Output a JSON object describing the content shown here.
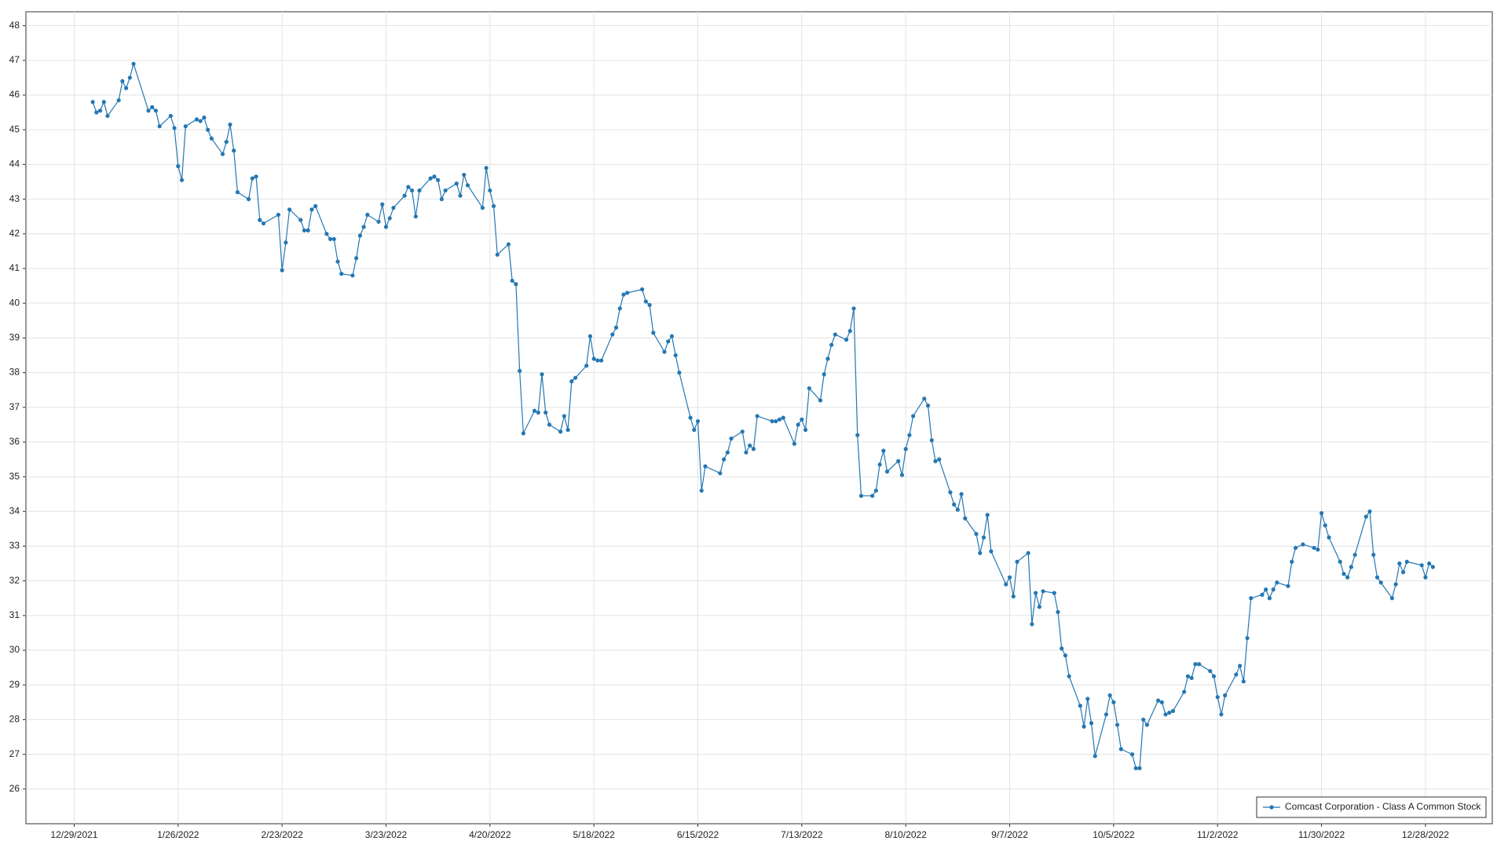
{
  "chart_data": {
    "type": "line",
    "x": [
      "1/3/2022",
      "1/4/2022",
      "1/5/2022",
      "1/6/2022",
      "1/7/2022",
      "1/10/2022",
      "1/11/2022",
      "1/12/2022",
      "1/13/2022",
      "1/14/2022",
      "1/18/2022",
      "1/19/2022",
      "1/20/2022",
      "1/21/2022",
      "1/24/2022",
      "1/25/2022",
      "1/26/2022",
      "1/27/2022",
      "1/28/2022",
      "1/31/2022",
      "2/1/2022",
      "2/2/2022",
      "2/3/2022",
      "2/4/2022",
      "2/7/2022",
      "2/8/2022",
      "2/9/2022",
      "2/10/2022",
      "2/11/2022",
      "2/14/2022",
      "2/15/2022",
      "2/16/2022",
      "2/17/2022",
      "2/18/2022",
      "2/22/2022",
      "2/23/2022",
      "2/24/2022",
      "2/25/2022",
      "2/28/2022",
      "3/1/2022",
      "3/2/2022",
      "3/3/2022",
      "3/4/2022",
      "3/7/2022",
      "3/8/2022",
      "3/9/2022",
      "3/10/2022",
      "3/11/2022",
      "3/14/2022",
      "3/15/2022",
      "3/16/2022",
      "3/17/2022",
      "3/18/2022",
      "3/21/2022",
      "3/22/2022",
      "3/23/2022",
      "3/24/2022",
      "3/25/2022",
      "3/28/2022",
      "3/29/2022",
      "3/30/2022",
      "3/31/2022",
      "4/1/2022",
      "4/4/2022",
      "4/5/2022",
      "4/6/2022",
      "4/7/2022",
      "4/8/2022",
      "4/11/2022",
      "4/12/2022",
      "4/13/2022",
      "4/14/2022",
      "4/18/2022",
      "4/19/2022",
      "4/20/2022",
      "4/21/2022",
      "4/22/2022",
      "4/25/2022",
      "4/26/2022",
      "4/27/2022",
      "4/28/2022",
      "4/29/2022",
      "5/2/2022",
      "5/3/2022",
      "5/4/2022",
      "5/5/2022",
      "5/6/2022",
      "5/9/2022",
      "5/10/2022",
      "5/11/2022",
      "5/12/2022",
      "5/13/2022",
      "5/16/2022",
      "5/17/2022",
      "5/18/2022",
      "5/19/2022",
      "5/20/2022",
      "5/23/2022",
      "5/24/2022",
      "5/25/2022",
      "5/26/2022",
      "5/27/2022",
      "5/31/2022",
      "6/1/2022",
      "6/2/2022",
      "6/3/2022",
      "6/6/2022",
      "6/7/2022",
      "6/8/2022",
      "6/9/2022",
      "6/10/2022",
      "6/13/2022",
      "6/14/2022",
      "6/15/2022",
      "6/16/2022",
      "6/17/2022",
      "6/21/2022",
      "6/22/2022",
      "6/23/2022",
      "6/24/2022",
      "6/27/2022",
      "6/28/2022",
      "6/29/2022",
      "6/30/2022",
      "7/1/2022",
      "7/5/2022",
      "7/6/2022",
      "7/7/2022",
      "7/8/2022",
      "7/11/2022",
      "7/12/2022",
      "7/13/2022",
      "7/14/2022",
      "7/15/2022",
      "7/18/2022",
      "7/19/2022",
      "7/20/2022",
      "7/21/2022",
      "7/22/2022",
      "7/25/2022",
      "7/26/2022",
      "7/27/2022",
      "7/28/2022",
      "7/29/2022",
      "8/1/2022",
      "8/2/2022",
      "8/3/2022",
      "8/4/2022",
      "8/5/2022",
      "8/8/2022",
      "8/9/2022",
      "8/10/2022",
      "8/11/2022",
      "8/12/2022",
      "8/15/2022",
      "8/16/2022",
      "8/17/2022",
      "8/18/2022",
      "8/19/2022",
      "8/22/2022",
      "8/23/2022",
      "8/24/2022",
      "8/25/2022",
      "8/26/2022",
      "8/29/2022",
      "8/30/2022",
      "8/31/2022",
      "9/1/2022",
      "9/2/2022",
      "9/6/2022",
      "9/7/2022",
      "9/8/2022",
      "9/9/2022",
      "9/12/2022",
      "9/13/2022",
      "9/14/2022",
      "9/15/2022",
      "9/16/2022",
      "9/19/2022",
      "9/20/2022",
      "9/21/2022",
      "9/22/2022",
      "9/23/2022",
      "9/26/2022",
      "9/27/2022",
      "9/28/2022",
      "9/29/2022",
      "9/30/2022",
      "10/3/2022",
      "10/4/2022",
      "10/5/2022",
      "10/6/2022",
      "10/7/2022",
      "10/10/2022",
      "10/11/2022",
      "10/12/2022",
      "10/13/2022",
      "10/14/2022",
      "10/17/2022",
      "10/18/2022",
      "10/19/2022",
      "10/20/2022",
      "10/21/2022",
      "10/24/2022",
      "10/25/2022",
      "10/26/2022",
      "10/27/2022",
      "10/28/2022",
      "10/31/2022",
      "11/1/2022",
      "11/2/2022",
      "11/3/2022",
      "11/4/2022",
      "11/7/2022",
      "11/8/2022",
      "11/9/2022",
      "11/10/2022",
      "11/11/2022",
      "11/14/2022",
      "11/15/2022",
      "11/16/2022",
      "11/17/2022",
      "11/18/2022",
      "11/21/2022",
      "11/22/2022",
      "11/23/2022",
      "11/25/2022",
      "11/28/2022",
      "11/29/2022",
      "11/30/2022",
      "12/1/2022",
      "12/2/2022",
      "12/5/2022",
      "12/6/2022",
      "12/7/2022",
      "12/8/2022",
      "12/9/2022",
      "12/12/2022",
      "12/13/2022",
      "12/14/2022",
      "12/15/2022",
      "12/16/2022",
      "12/19/2022",
      "12/20/2022",
      "12/21/2022",
      "12/22/2022",
      "12/23/2022",
      "12/27/2022",
      "12/28/2022",
      "12/29/2022",
      "12/30/2022"
    ],
    "series": [
      {
        "name": "Comcast Corporation - Class A Common Stock",
        "color": "#2477b3",
        "values": [
          45.8,
          45.5,
          45.55,
          45.8,
          45.4,
          45.85,
          46.4,
          46.2,
          46.5,
          46.9,
          45.55,
          45.65,
          45.55,
          45.1,
          45.4,
          45.05,
          43.95,
          43.55,
          45.1,
          45.3,
          45.25,
          45.35,
          45.0,
          44.75,
          44.3,
          44.65,
          45.15,
          44.4,
          43.2,
          43.0,
          43.6,
          43.65,
          42.4,
          42.3,
          42.55,
          40.95,
          41.75,
          42.7,
          42.4,
          42.1,
          42.1,
          42.7,
          42.8,
          42.0,
          41.85,
          41.85,
          41.2,
          40.85,
          40.8,
          41.3,
          41.95,
          42.2,
          42.55,
          42.35,
          42.85,
          42.2,
          42.45,
          42.75,
          43.1,
          43.35,
          43.25,
          42.5,
          43.25,
          43.6,
          43.65,
          43.55,
          43.0,
          43.25,
          43.45,
          43.1,
          43.7,
          43.4,
          42.75,
          43.9,
          43.25,
          42.8,
          41.4,
          41.7,
          40.65,
          40.55,
          38.05,
          36.25,
          36.9,
          36.85,
          37.95,
          36.85,
          36.5,
          36.3,
          36.75,
          36.35,
          37.75,
          37.85,
          38.2,
          39.05,
          38.4,
          38.35,
          38.35,
          39.1,
          39.3,
          39.85,
          40.25,
          40.3,
          40.4,
          40.05,
          39.95,
          39.15,
          38.6,
          38.9,
          39.05,
          38.5,
          38.0,
          36.7,
          36.35,
          36.6,
          34.6,
          35.3,
          35.1,
          35.5,
          35.7,
          36.1,
          36.3,
          35.7,
          35.9,
          35.8,
          36.75,
          36.6,
          36.6,
          36.65,
          36.7,
          35.95,
          36.5,
          36.65,
          36.35,
          37.55,
          37.2,
          37.95,
          38.4,
          38.8,
          39.1,
          38.95,
          39.2,
          39.85,
          36.2,
          34.45,
          34.45,
          34.6,
          35.35,
          35.75,
          35.15,
          35.45,
          35.05,
          35.8,
          36.2,
          36.75,
          37.25,
          37.05,
          36.05,
          35.45,
          35.5,
          34.55,
          34.2,
          34.05,
          34.5,
          33.8,
          33.35,
          32.8,
          33.25,
          33.9,
          32.85,
          31.9,
          32.1,
          31.55,
          32.55,
          32.8,
          30.75,
          31.65,
          31.25,
          31.7,
          31.65,
          31.1,
          30.05,
          29.85,
          29.25,
          28.4,
          27.8,
          28.6,
          27.9,
          26.95,
          28.15,
          28.7,
          28.5,
          27.85,
          27.15,
          27.0,
          26.6,
          26.6,
          28.0,
          27.85,
          28.55,
          28.5,
          28.15,
          28.2,
          28.25,
          28.8,
          29.25,
          29.2,
          29.6,
          29.6,
          29.4,
          29.25,
          28.65,
          28.15,
          28.7,
          29.3,
          29.55,
          29.1,
          30.35,
          31.5,
          31.6,
          31.75,
          31.5,
          31.75,
          31.95,
          31.85,
          32.55,
          32.95,
          33.05,
          32.95,
          32.9,
          33.95,
          33.6,
          33.25,
          32.55,
          32.2,
          32.1,
          32.4,
          32.75,
          33.85,
          34.0,
          32.75,
          32.1,
          31.95,
          31.5,
          31.9,
          32.5,
          32.25,
          32.55,
          32.45,
          32.1,
          32.5,
          32.4
        ]
      }
    ],
    "xlim": [
      "12/16/2021",
      "1/15/2023"
    ],
    "xticks": [
      "12/29/2021",
      "1/26/2022",
      "2/23/2022",
      "3/23/2022",
      "4/20/2022",
      "5/18/2022",
      "6/15/2022",
      "7/13/2022",
      "8/10/2022",
      "9/7/2022",
      "10/5/2022",
      "11/2/2022",
      "11/30/2022",
      "12/28/2022"
    ],
    "ylim": [
      25,
      48.4
    ],
    "yticks": [
      26,
      27,
      28,
      29,
      30,
      31,
      32,
      33,
      34,
      35,
      36,
      37,
      38,
      39,
      40,
      41,
      42,
      43,
      44,
      45,
      46,
      47,
      48
    ],
    "grid": true,
    "legend": "lower right"
  }
}
